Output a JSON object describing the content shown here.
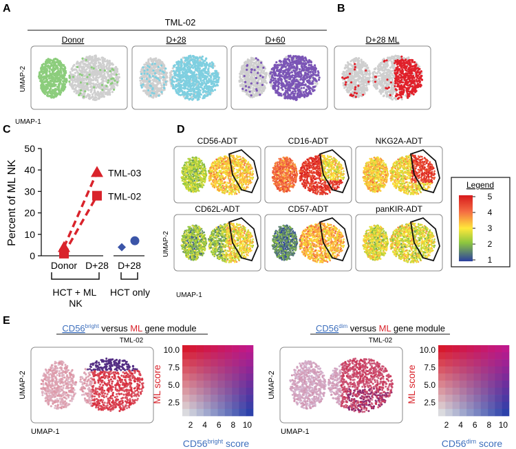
{
  "panel_letters": [
    "A",
    "B",
    "C",
    "D",
    "E"
  ],
  "panel_a": {
    "group_title": "TML-02",
    "titles": [
      "Donor",
      "D+28",
      "D+60"
    ],
    "colors": [
      "#8ccd7c",
      "#7fcfe0",
      "#7b55b6"
    ],
    "ylabel": "UMAP-2",
    "xlabel": "UMAP-1"
  },
  "panel_b": {
    "title": "D+28 ML",
    "color": "#e0202a"
  },
  "chart_data": {
    "type": "scatter",
    "title": "",
    "ylabel": "Percent  of ML NK",
    "ylim": [
      0,
      50
    ],
    "yticks": [
      0,
      10,
      20,
      30,
      40,
      50
    ],
    "categories": [
      "Donor",
      "D+28",
      "D+28"
    ],
    "series": [
      {
        "name": "TML-03",
        "marker": "triangle",
        "color": "#d9232b",
        "x": [
          "Donor",
          "D+28"
        ],
        "values": [
          4,
          39
        ],
        "line": "dashed"
      },
      {
        "name": "TML-02",
        "marker": "square",
        "color": "#d9232b",
        "x": [
          "Donor",
          "D+28"
        ],
        "values": [
          1,
          28
        ],
        "line": "dashed"
      },
      {
        "name": "HCT only (diamond)",
        "marker": "diamond",
        "color": "#3b55a8",
        "x": [
          "D+28"
        ],
        "values": [
          4
        ]
      },
      {
        "name": "HCT only (circle)",
        "marker": "circle",
        "color": "#3b55a8",
        "x": [
          "D+28"
        ],
        "values": [
          7
        ]
      }
    ],
    "group_labels": [
      "HCT + ML\nNK",
      "HCT only"
    ]
  },
  "panel_d": {
    "titles": [
      "CD56-ADT",
      "CD16-ADT",
      "NKG2A-ADT",
      "CD62L-ADT",
      "CD57-ADT",
      "panKIR-ADT"
    ],
    "ylabel": "UMAP-2",
    "xlabel": "UMAP-1",
    "legend_title": "Legend",
    "legend_ticks": [
      5,
      4,
      3,
      2,
      1
    ]
  },
  "panel_e": {
    "left": {
      "title_pre": "CD56",
      "title_sup": "bright",
      "title_mid": " versus ",
      "title_ml": "ML",
      "title_post": " gene module",
      "subtitle": "TML-02",
      "xlabel_main": "CD56",
      "xlabel_sup": "bright",
      "xlabel_post": " score",
      "ylabel": "ML score"
    },
    "right": {
      "title_pre": "CD56",
      "title_sup": "dim",
      "title_mid": " versus ",
      "title_ml": "ML",
      "title_post": " gene module",
      "subtitle": "TML-02",
      "xlabel_main": "CD56",
      "xlabel_sup": "dim",
      "xlabel_post": " score",
      "ylabel": "ML score"
    },
    "umap_ylabel": "UMAP-2",
    "umap_xlabel": "UMAP-1",
    "grid_xticks": [
      "2",
      "4",
      "6",
      "8",
      "10"
    ],
    "grid_yticks": [
      "10.0",
      "7.5",
      "5.0",
      "2.5"
    ],
    "blue": "#3d6fbd",
    "red": "#d9232b"
  }
}
